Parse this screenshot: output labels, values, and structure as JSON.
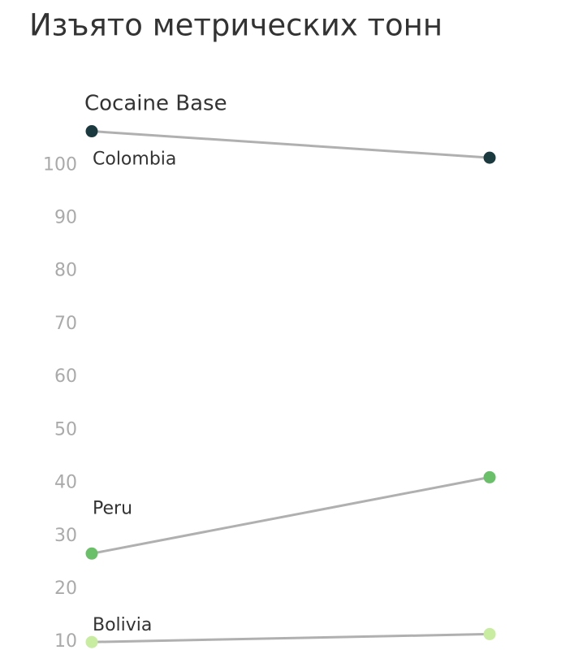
{
  "chart_data": {
    "type": "slope",
    "title": "Изъято метрических тонн",
    "subtitle": "Cocaine Base",
    "categories": [
      null,
      null
    ],
    "series": [
      {
        "name": "Colombia",
        "color": "#1b3a40",
        "values": [
          106.4,
          101.4
        ]
      },
      {
        "name": "Peru",
        "color": "#6abf69",
        "values": [
          26.7,
          41.1
        ]
      },
      {
        "name": "Bolivia",
        "color": "#c8eca0",
        "values": [
          10,
          11.5
        ]
      }
    ],
    "line_color": "#b0b0b0",
    "ylim": [
      8.5,
      112
    ],
    "yticks": [
      10,
      20,
      30,
      40,
      50,
      60,
      70,
      80,
      90,
      100
    ],
    "grid": false
  }
}
